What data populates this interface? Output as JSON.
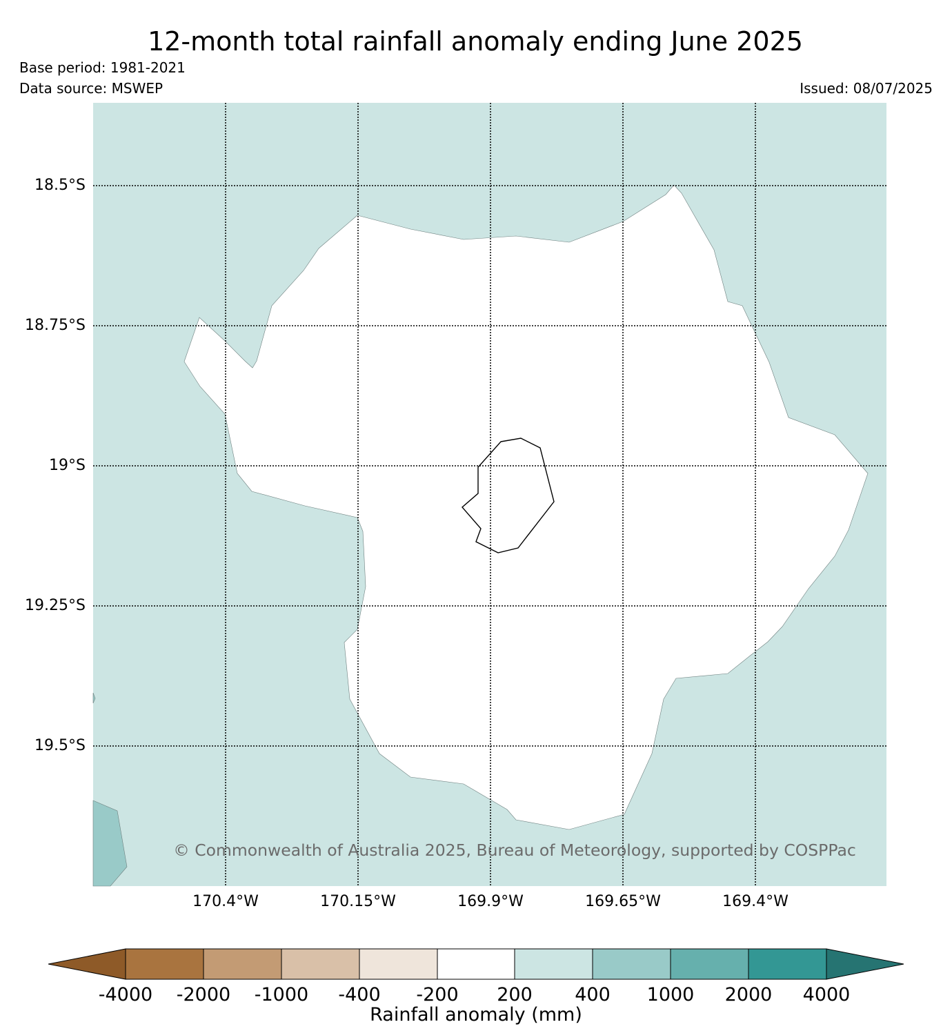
{
  "title": "12-month total rainfall anomaly ending June 2025",
  "base_period": "Base period: 1981-2021",
  "data_source": "Data source: MSWEP",
  "issued": "Issued: 08/07/2025",
  "copyright": "© Commonwealth of Australia 2025, Bureau of Meteorology, supported by COSPPac",
  "map": {
    "lat_labels": [
      "18.5°S",
      "18.75°S",
      "19°S",
      "19.25°S",
      "19.5°S"
    ],
    "lon_labels": [
      "170.4°W",
      "170.15°W",
      "169.9°W",
      "169.65°W",
      "169.4°W"
    ],
    "colors": {
      "band_200_400": "#cce5e3",
      "band_400_1000": "#99cac8",
      "band_neutral": "#ffffff"
    }
  },
  "colorbar": {
    "title": "Rainfall anomaly (mm)",
    "tick_labels": [
      "-4000",
      "-2000",
      "-1000",
      "-400",
      "-200",
      "200",
      "400",
      "1000",
      "2000",
      "4000"
    ],
    "colors": [
      "#8e5a28",
      "#a9743f",
      "#c39b74",
      "#d9c0a8",
      "#efe5db",
      "#ffffff",
      "#cce5e3",
      "#99cac8",
      "#66b0ad",
      "#339794",
      "#267472"
    ]
  }
}
